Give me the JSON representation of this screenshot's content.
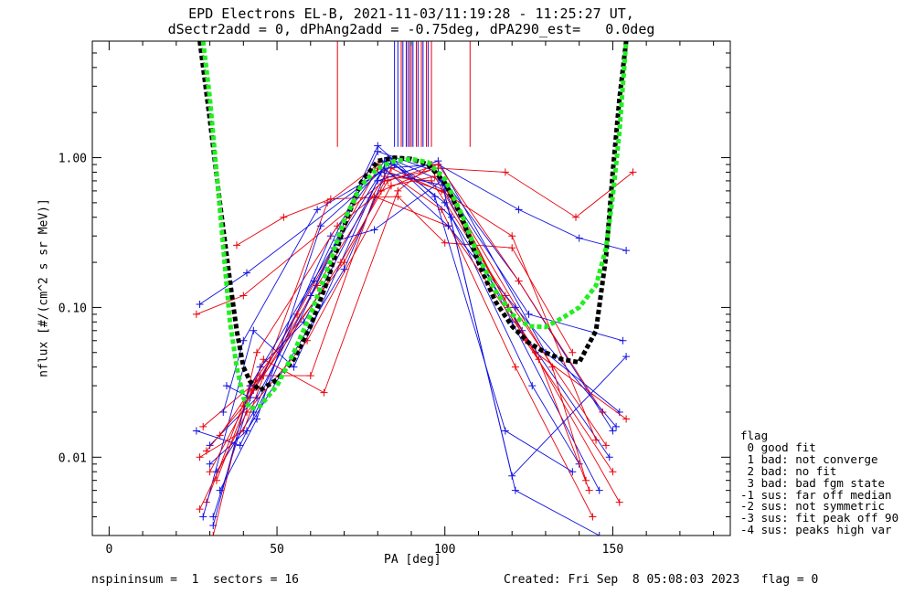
{
  "chart_data": {
    "type": "line",
    "title": "EPD Electrons EL-B, 2021-11-03/11:19:28 - 11:25:27 UT,",
    "subtitle": "dSectr2add = 0, dPhAng2add = -0.75deg, dPA290_est=   0.0deg",
    "xlabel": "PA [deg]",
    "ylabel": "nflux [#/(cm^2 s sr MeV)]",
    "xlim": [
      -5,
      185
    ],
    "ylim": [
      0.003,
      6.0
    ],
    "yscale": "log",
    "x_ticks": [
      "0",
      "50",
      "100",
      "150"
    ],
    "y_ticks": [
      "0.01",
      "0.10",
      "1.00"
    ],
    "grid": false,
    "legend_position": "outside-right",
    "colors": {
      "red": "#e8000b",
      "blue": "#1010e0",
      "black": "#000000",
      "green": "#22ee22"
    },
    "series": [
      {
        "color": "black",
        "style": "dashed",
        "x": [
          27,
          30,
          33,
          36,
          38,
          40,
          42,
          45,
          50,
          55,
          60,
          65,
          70,
          75,
          80,
          85,
          90,
          95,
          100,
          105,
          110,
          115,
          120,
          125,
          130,
          135,
          140,
          145,
          148,
          150,
          152,
          154
        ],
        "y": [
          6.0,
          1.8,
          0.5,
          0.15,
          0.07,
          0.04,
          0.032,
          0.028,
          0.033,
          0.045,
          0.075,
          0.15,
          0.35,
          0.68,
          0.95,
          1.0,
          0.98,
          0.9,
          0.68,
          0.4,
          0.2,
          0.11,
          0.075,
          0.058,
          0.05,
          0.045,
          0.043,
          0.07,
          0.22,
          0.8,
          2.5,
          6.0
        ]
      },
      {
        "color": "green",
        "style": "dashed",
        "x": [
          28,
          30,
          32,
          34,
          36,
          38,
          40,
          42,
          45,
          50,
          55,
          60,
          65,
          70,
          75,
          80,
          85,
          90,
          95,
          100,
          105,
          110,
          115,
          120,
          125,
          130,
          135,
          140,
          145,
          148,
          150,
          152,
          154
        ],
        "y": [
          6.0,
          2.5,
          0.8,
          0.25,
          0.08,
          0.04,
          0.025,
          0.021,
          0.022,
          0.03,
          0.05,
          0.09,
          0.18,
          0.38,
          0.65,
          0.85,
          0.95,
          0.98,
          0.93,
          0.72,
          0.42,
          0.22,
          0.13,
          0.09,
          0.075,
          0.074,
          0.085,
          0.1,
          0.14,
          0.25,
          0.55,
          1.5,
          6.0
        ]
      },
      {
        "color": "blue",
        "x": [
          27,
          41,
          82,
          98,
          122,
          140,
          154
        ],
        "y": [
          0.105,
          0.17,
          0.85,
          0.9,
          0.45,
          0.29,
          0.24
        ]
      },
      {
        "color": "red",
        "x": [
          26,
          40,
          82,
          98,
          118,
          139,
          156
        ],
        "y": [
          0.09,
          0.12,
          0.7,
          0.85,
          0.8,
          0.4,
          0.8
        ]
      },
      {
        "color": "red",
        "x": [
          38,
          52,
          66,
          86,
          100,
          120,
          138
        ],
        "y": [
          0.26,
          0.4,
          0.53,
          0.55,
          0.27,
          0.25,
          0.05
        ]
      },
      {
        "color": "blue",
        "x": [
          30,
          44,
          60,
          80,
          98,
          122,
          150
        ],
        "y": [
          0.012,
          0.025,
          0.12,
          1.1,
          0.8,
          0.15,
          0.015
        ]
      },
      {
        "color": "red",
        "x": [
          28,
          46,
          62,
          82,
          96,
          118,
          148
        ],
        "y": [
          0.016,
          0.035,
          0.14,
          0.75,
          0.7,
          0.12,
          0.012
        ]
      },
      {
        "color": "blue",
        "x": [
          32,
          43,
          66,
          82,
          100,
          120,
          146
        ],
        "y": [
          0.008,
          0.02,
          0.3,
          0.95,
          0.6,
          0.08,
          0.006
        ]
      },
      {
        "color": "red",
        "x": [
          29,
          42,
          70,
          84,
          102,
          124,
          150
        ],
        "y": [
          0.005,
          0.03,
          0.2,
          0.85,
          0.55,
          0.06,
          0.008
        ]
      },
      {
        "color": "blue",
        "x": [
          31,
          45,
          58,
          80,
          98,
          130,
          152
        ],
        "y": [
          0.004,
          0.04,
          0.08,
          0.7,
          0.95,
          0.05,
          0.02
        ]
      },
      {
        "color": "red",
        "x": [
          27,
          40,
          65,
          80,
          99,
          121,
          144
        ],
        "y": [
          0.01,
          0.015,
          0.5,
          0.9,
          0.45,
          0.04,
          0.004
        ]
      },
      {
        "color": "blue",
        "x": [
          34,
          40,
          62,
          85,
          100,
          126,
          140
        ],
        "y": [
          0.02,
          0.06,
          0.45,
          0.9,
          0.5,
          0.03,
          0.009
        ]
      },
      {
        "color": "red",
        "x": [
          31,
          44,
          68,
          81,
          97,
          119,
          152
        ],
        "y": [
          0.003,
          0.05,
          0.35,
          0.6,
          0.85,
          0.1,
          0.005
        ]
      },
      {
        "color": "blue",
        "x": [
          28,
          43,
          55,
          83,
          99,
          121,
          146
        ],
        "y": [
          0.004,
          0.07,
          0.04,
          1.0,
          0.7,
          0.006,
          0.003
        ]
      },
      {
        "color": "red",
        "x": [
          33,
          45,
          60,
          79,
          101,
          127,
          154
        ],
        "y": [
          0.014,
          0.035,
          0.035,
          0.55,
          0.35,
          0.05,
          0.018
        ]
      },
      {
        "color": "blue",
        "x": [
          30,
          41,
          70,
          84,
          102,
          123,
          149
        ],
        "y": [
          0.009,
          0.015,
          0.18,
          0.95,
          0.4,
          0.07,
          0.01
        ]
      },
      {
        "color": "red",
        "x": [
          32,
          46,
          64,
          86,
          96,
          132,
          142
        ],
        "y": [
          0.007,
          0.045,
          0.027,
          0.6,
          0.9,
          0.04,
          0.007
        ]
      },
      {
        "color": "blue",
        "x": [
          35,
          42,
          61,
          80,
          97,
          118,
          138
        ],
        "y": [
          0.03,
          0.025,
          0.15,
          1.2,
          0.55,
          0.015,
          0.008
        ]
      },
      {
        "color": "red",
        "x": [
          29,
          40,
          56,
          80,
          99,
          120,
          145
        ],
        "y": [
          0.011,
          0.022,
          0.09,
          0.85,
          0.6,
          0.3,
          0.013
        ]
      },
      {
        "color": "blue",
        "x": [
          26,
          39,
          67,
          81,
          100,
          125,
          153
        ],
        "y": [
          0.015,
          0.012,
          0.25,
          0.8,
          0.65,
          0.09,
          0.06
        ]
      },
      {
        "color": "red",
        "x": [
          30,
          43,
          69,
          83,
          98,
          122,
          147
        ],
        "y": [
          0.008,
          0.028,
          0.2,
          0.7,
          0.9,
          0.15,
          0.02
        ]
      },
      {
        "color": "blue",
        "x": [
          33,
          44,
          63,
          82,
          101,
          121,
          151
        ],
        "y": [
          0.006,
          0.018,
          0.35,
          0.85,
          0.35,
          0.1,
          0.016
        ]
      },
      {
        "color": "red",
        "x": [
          27,
          41,
          59,
          84,
          97,
          128,
          143
        ],
        "y": [
          0.0045,
          0.02,
          0.06,
          0.65,
          0.75,
          0.045,
          0.006
        ]
      },
      {
        "color": "blue",
        "x": [
          31,
          42,
          68,
          79,
          99,
          120,
          154
        ],
        "y": [
          0.0035,
          0.03,
          0.28,
          0.33,
          0.7,
          0.0075,
          0.047
        ]
      }
    ],
    "vertical_markers": [
      {
        "color": "red",
        "x": [
          68,
          107.5,
          90,
          91.5,
          93,
          94.5,
          96,
          87,
          89
        ]
      },
      {
        "color": "blue",
        "x": [
          85,
          86,
          87.5,
          88.5,
          90.5,
          92,
          93.5,
          95,
          89.5
        ]
      }
    ],
    "legend": {
      "title": "flag",
      "items": [
        " 0 good fit",
        " 1 bad: not converge",
        " 2 bad: no fit",
        " 3 bad: bad fgm state",
        "-1 sus: far off median",
        "-2 sus: not symmetric",
        "-3 sus: fit peak off 90",
        "-4 sus: peaks high var"
      ]
    }
  },
  "footer": {
    "left": "nspininsum =  1  sectors = 16",
    "right": "Created: Fri Sep  8 05:08:03 2023   flag = 0"
  }
}
